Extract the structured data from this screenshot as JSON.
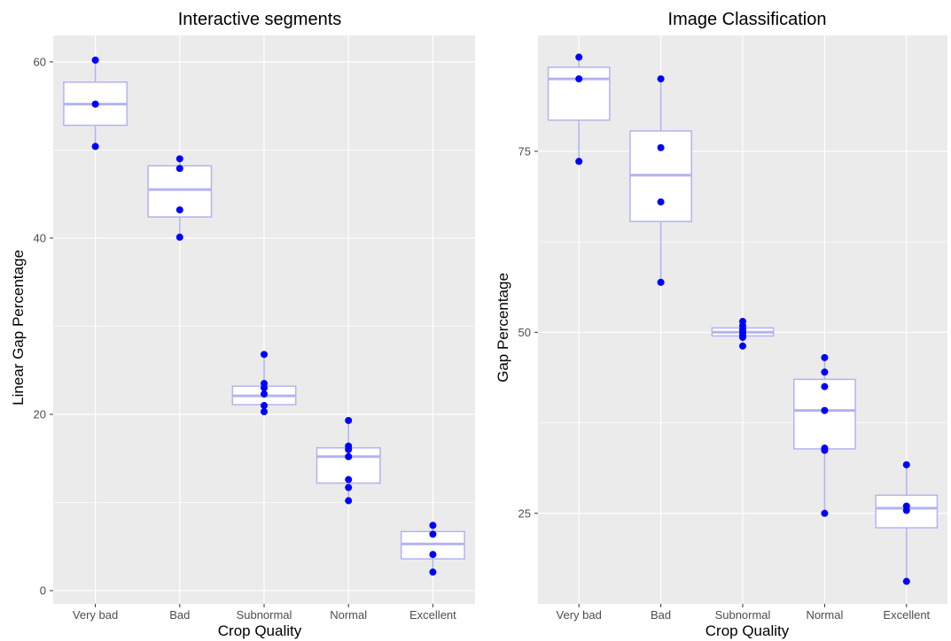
{
  "chart_data": [
    {
      "type": "box",
      "title": "Interactive segments",
      "xlabel": "Crop Quality",
      "ylabel": "Linear Gap Percentage",
      "categories": [
        "Very bad",
        "Bad",
        "Subnormal",
        "Normal",
        "Excellent"
      ],
      "yticks": [
        0,
        20,
        40,
        60
      ],
      "ylim": [
        -1.5,
        63
      ],
      "grid": true,
      "boxes": [
        {
          "category": "Very bad",
          "min": 50.4,
          "q1": 52.8,
          "median": 55.2,
          "q3": 57.7,
          "max": 60.2
        },
        {
          "category": "Bad",
          "min": 40.1,
          "q1": 42.4,
          "median": 45.5,
          "q3": 48.2,
          "max": 49.0
        },
        {
          "category": "Subnormal",
          "min": 20.3,
          "q1": 21.1,
          "median": 22.1,
          "q3": 23.2,
          "max": 26.8
        },
        {
          "category": "Normal",
          "min": 10.2,
          "q1": 12.2,
          "median": 15.2,
          "q3": 16.2,
          "max": 19.3
        },
        {
          "category": "Excellent",
          "min": 2.1,
          "q1": 3.6,
          "median": 5.3,
          "q3": 6.7,
          "max": 7.4
        }
      ],
      "points": [
        {
          "category": "Very bad",
          "values": [
            60.2,
            55.2,
            50.4
          ]
        },
        {
          "category": "Bad",
          "values": [
            49.0,
            47.9,
            43.2,
            40.1
          ]
        },
        {
          "category": "Subnormal",
          "values": [
            26.8,
            23.5,
            23.0,
            22.3,
            21.0,
            20.3
          ]
        },
        {
          "category": "Normal",
          "values": [
            19.3,
            16.4,
            16.0,
            15.2,
            12.6,
            11.7,
            10.2
          ]
        },
        {
          "category": "Excellent",
          "values": [
            7.4,
            6.4,
            4.1,
            2.1
          ]
        }
      ]
    },
    {
      "type": "box",
      "title": "Image Classification",
      "xlabel": "Crop Quality",
      "ylabel": "Gap Percentage",
      "categories": [
        "Very bad",
        "Bad",
        "Subnormal",
        "Normal",
        "Excellent"
      ],
      "yticks": [
        25,
        50,
        75
      ],
      "ylim": [
        12.5,
        91
      ],
      "grid": true,
      "boxes": [
        {
          "category": "Very bad",
          "min": 73.6,
          "q1": 79.3,
          "median": 85.0,
          "q3": 86.6,
          "max": 88.0
        },
        {
          "category": "Bad",
          "min": 56.9,
          "q1": 65.3,
          "median": 71.7,
          "q3": 77.8,
          "max": 85.0
        },
        {
          "category": "Subnormal",
          "min": 48.1,
          "q1": 49.5,
          "median": 50.0,
          "q3": 50.6,
          "max": 51.5
        },
        {
          "category": "Normal",
          "min": 25.0,
          "q1": 33.9,
          "median": 39.2,
          "q3": 43.5,
          "max": 46.5
        },
        {
          "category": "Excellent",
          "min": 15.6,
          "q1": 23.0,
          "median": 25.7,
          "q3": 27.5,
          "max": 31.7
        }
      ],
      "points": [
        {
          "category": "Very bad",
          "values": [
            88.0,
            85.0,
            73.6
          ]
        },
        {
          "category": "Bad",
          "values": [
            85.0,
            75.5,
            68.0,
            56.9
          ]
        },
        {
          "category": "Subnormal",
          "values": [
            51.5,
            50.9,
            50.4,
            50.0,
            49.6,
            49.3,
            48.1
          ]
        },
        {
          "category": "Normal",
          "values": [
            46.5,
            44.5,
            42.5,
            39.2,
            34.0,
            33.7,
            25.0
          ]
        },
        {
          "category": "Excellent",
          "values": [
            31.7,
            26.0,
            25.4,
            15.6
          ]
        }
      ]
    }
  ],
  "colors": {
    "panel": "#ebebeb",
    "grid": "#ffffff",
    "box_stroke": "#b3b3f2",
    "box_fill": "#ffffff",
    "point": "#0000ff",
    "tick_label": "#4d4d4d"
  }
}
